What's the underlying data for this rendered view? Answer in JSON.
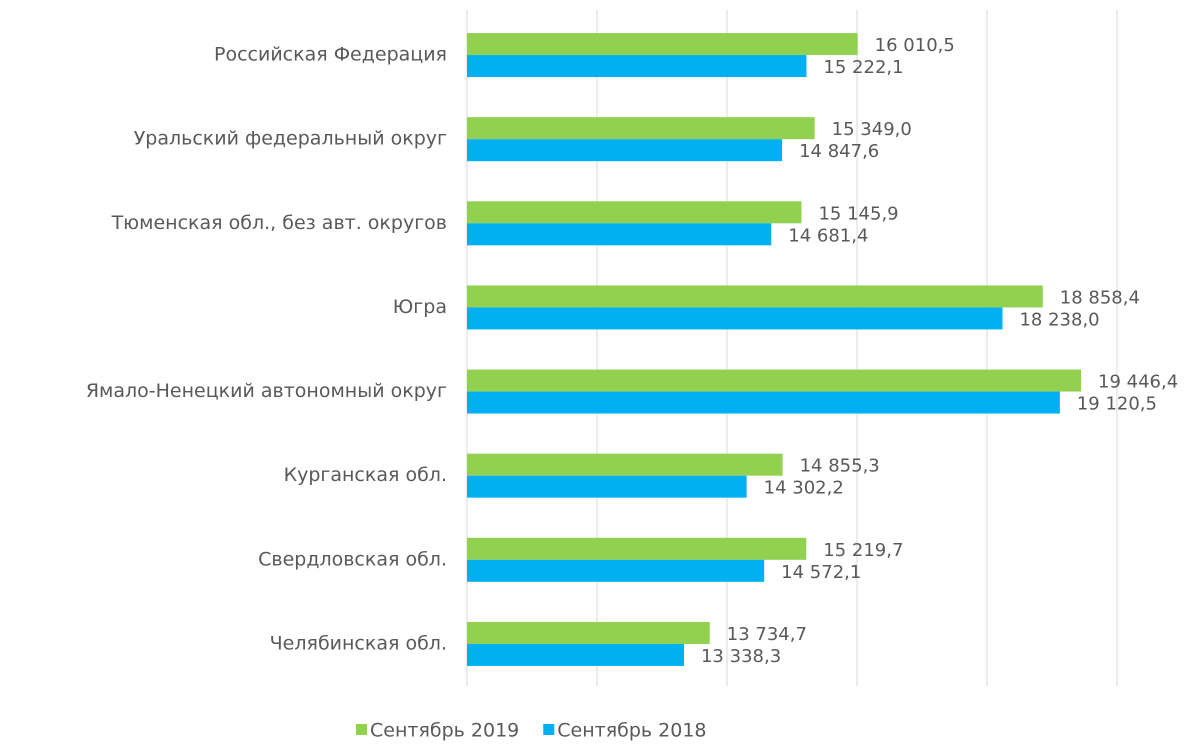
{
  "chart_data": {
    "type": "hbar",
    "categories": [
      "Российская Федерация",
      "Уральский федеральный округ",
      "Тюменская обл., без авт. округов",
      "Югра",
      "Ямало-Ненецкий автономный округ",
      "Курганская обл.",
      "Свердловская обл.",
      "Челябинская обл."
    ],
    "series": [
      {
        "name": "Сентябрь 2019",
        "color": "#92d050",
        "values": [
          16010.5,
          15349.0,
          15145.9,
          18858.4,
          19446.4,
          14855.3,
          15219.7,
          13734.7
        ],
        "value_labels": [
          "16 010,5",
          "15 349,0",
          "15 145,9",
          "18 858,4",
          "19 446,4",
          "14 855,3",
          "15 219,7",
          "13 734,7"
        ]
      },
      {
        "name": "Сентябрь 2018",
        "color": "#00b0f0",
        "values": [
          15222.1,
          14847.6,
          14681.4,
          18238.0,
          19120.5,
          14302.2,
          14572.1,
          13338.3
        ],
        "value_labels": [
          "15 222,1",
          "14 847,6",
          "14 681,4",
          "18 238,0",
          "19 120,5",
          "14 302,2",
          "14 572,1",
          "13 338,3"
        ]
      }
    ],
    "xlim": [
      10000,
      20000
    ],
    "xticks": [
      10000,
      12000,
      14000,
      16000,
      18000,
      20000
    ],
    "grid": true
  }
}
